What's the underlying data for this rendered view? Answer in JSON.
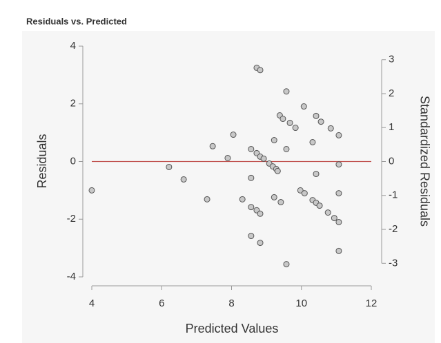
{
  "chart_data": {
    "type": "scatter",
    "title": "Residuals vs. Predicted",
    "x_label": "Predicted Values",
    "y_label": "Residuals",
    "y2_label": "Standardized Residuals",
    "xlim": [
      4,
      12
    ],
    "xticks": [
      4,
      6,
      8,
      10,
      12
    ],
    "ylim": [
      -4,
      4
    ],
    "yticks": [
      -4,
      -2,
      0,
      2,
      4
    ],
    "y2lim": [
      -3.4,
      3.4
    ],
    "y2ticks": [
      -3,
      -2,
      -1,
      0,
      1,
      2,
      3
    ],
    "reference_line": {
      "y": 0,
      "color": "#c0504d"
    },
    "color": "#c8c8c8",
    "x": [
      4.0,
      6.21,
      6.63,
      7.3,
      7.46,
      7.89,
      8.05,
      8.31,
      8.56,
      8.56,
      8.56,
      8.56,
      8.72,
      8.82,
      8.72,
      8.82,
      8.92,
      8.72,
      8.82,
      8.82,
      9.08,
      9.18,
      9.28,
      9.22,
      9.32,
      9.22,
      9.41,
      9.38,
      9.47,
      9.57,
      9.57,
      9.57,
      9.67,
      9.83,
      9.97,
      10.09,
      10.07,
      10.32,
      10.32,
      10.42,
      10.52,
      10.42,
      10.42,
      10.56,
      10.76,
      10.84,
      10.94,
      11.07,
      11.07,
      11.07,
      11.07,
      11.07
    ],
    "values": [
      -1.0,
      -0.19,
      -0.62,
      -1.31,
      0.53,
      0.12,
      0.93,
      -1.31,
      0.43,
      -0.57,
      -1.58,
      -2.58,
      3.25,
      3.17,
      0.29,
      0.17,
      0.1,
      -1.69,
      -1.81,
      -2.82,
      -0.07,
      -0.17,
      -0.26,
      0.74,
      -0.33,
      -1.24,
      -1.41,
      1.6,
      1.48,
      2.43,
      0.43,
      -3.56,
      1.34,
      1.17,
      -1.0,
      -1.1,
      1.91,
      0.67,
      -1.34,
      -1.43,
      -1.53,
      1.58,
      -0.43,
      1.38,
      -1.77,
      1.15,
      -1.96,
      0.91,
      -0.1,
      -1.1,
      -2.1,
      -3.1
    ]
  }
}
